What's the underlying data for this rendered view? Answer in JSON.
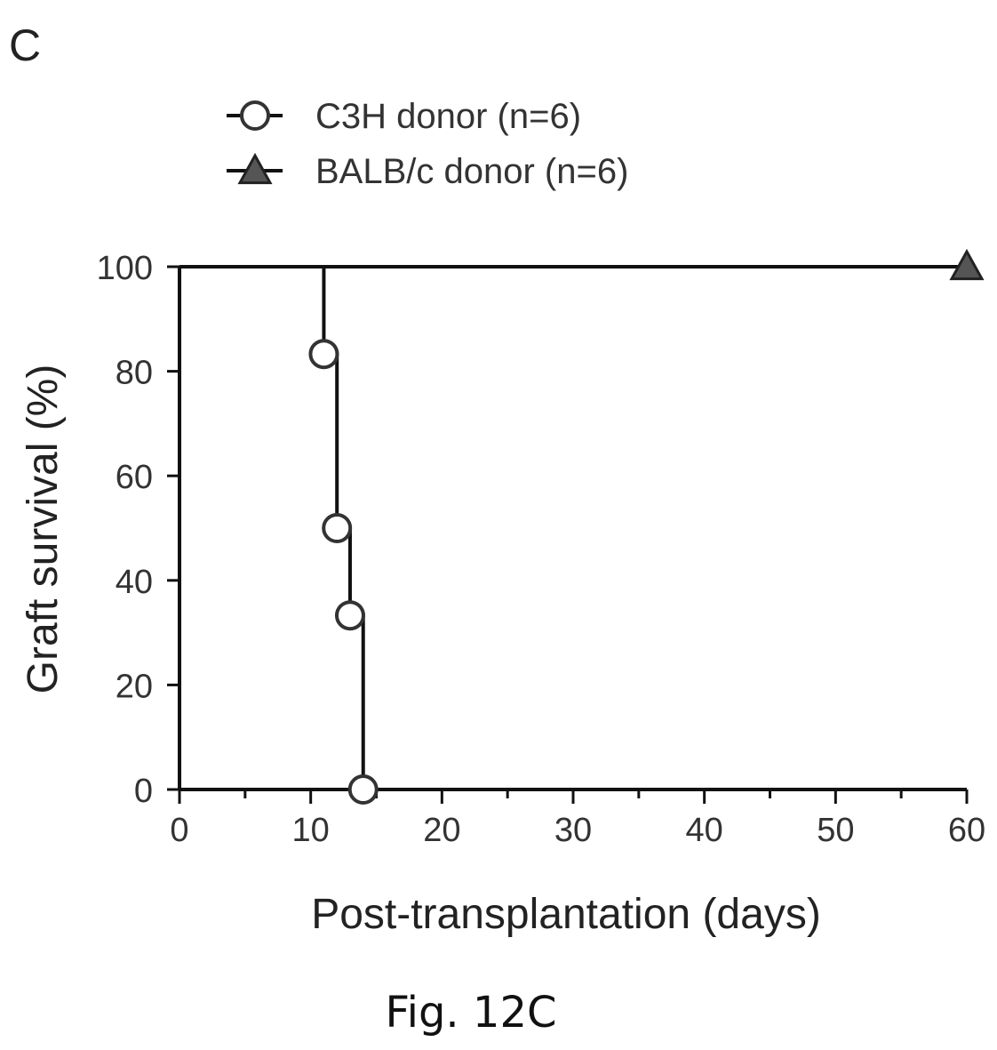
{
  "panel_label": "C",
  "caption": "Fig. 12C",
  "chart_data": {
    "type": "line",
    "step": true,
    "xlabel": "Post-transplantation (days)",
    "ylabel": "Graft survival (%)",
    "xlim": [
      0,
      60
    ],
    "ylim": [
      0,
      100
    ],
    "xticks": [
      0,
      10,
      20,
      30,
      40,
      50,
      60
    ],
    "yticks": [
      0,
      20,
      40,
      60,
      80,
      100
    ],
    "grid": false,
    "legend_position": "top-left",
    "series": [
      {
        "name": "C3H donor (n=6)",
        "marker": "circle",
        "x": [
          0,
          11,
          12,
          13,
          14
        ],
        "y": [
          100,
          83.3,
          50,
          33.3,
          0
        ],
        "marked_x": [
          11,
          12,
          13,
          14
        ]
      },
      {
        "name": "BALB/c donor (n=6)",
        "marker": "triangle",
        "x": [
          0,
          60
        ],
        "y": [
          100,
          100
        ],
        "marked_x": [
          60
        ]
      }
    ]
  }
}
